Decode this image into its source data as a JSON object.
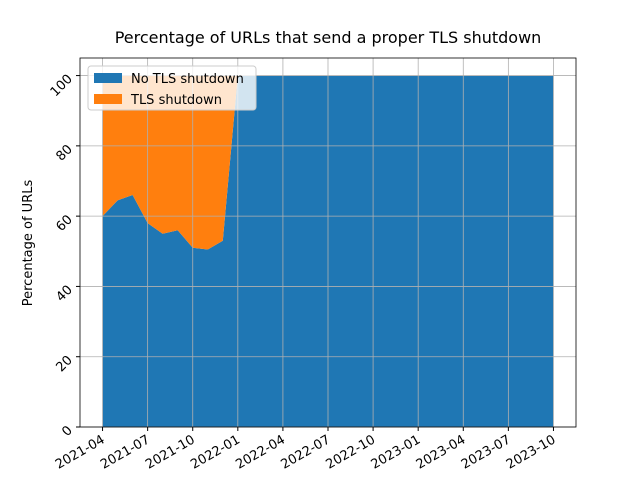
{
  "chart_data": {
    "type": "stacked-area",
    "title": "Percentage of URLs that send a proper TLS shutdown",
    "y_label": "Percentage of URLs",
    "x": [
      "2021-04",
      "2021-05",
      "2021-06",
      "2021-07",
      "2021-08",
      "2021-09",
      "2021-10",
      "2021-11",
      "2021-12",
      "2022-01",
      "2022-02",
      "2022-03",
      "2022-04",
      "2022-05",
      "2022-06",
      "2022-07",
      "2022-08",
      "2022-09",
      "2022-10",
      "2022-11",
      "2022-12",
      "2023-01",
      "2023-02",
      "2023-03",
      "2023-04",
      "2023-05",
      "2023-06",
      "2023-07",
      "2023-08",
      "2023-09",
      "2023-10"
    ],
    "series": [
      {
        "name": "No TLS shutdown",
        "color": "#1f77b4",
        "values": [
          60,
          64.5,
          66,
          58,
          55,
          56,
          51,
          50.5,
          53,
          100,
          100,
          100,
          100,
          100,
          100,
          100,
          100,
          100,
          100,
          100,
          100,
          100,
          100,
          100,
          100,
          100,
          100,
          100,
          100,
          100,
          100
        ]
      },
      {
        "name": "TLS shutdown",
        "color": "#ff7f0e",
        "values": [
          40,
          35.5,
          34,
          42,
          45,
          44,
          49,
          49.5,
          47,
          0,
          0,
          0,
          0,
          0,
          0,
          0,
          0,
          0,
          0,
          0,
          0,
          0,
          0,
          0,
          0,
          0,
          0,
          0,
          0,
          0,
          0
        ]
      }
    ],
    "xticks": [
      "2021-04",
      "2021-07",
      "2021-10",
      "2022-01",
      "2022-04",
      "2022-07",
      "2022-10",
      "2023-01",
      "2023-04",
      "2023-07",
      "2023-10"
    ],
    "ylim": [
      0,
      105
    ],
    "yticks": [
      0,
      20,
      40,
      60,
      80,
      100
    ],
    "grid": true,
    "legend": "upper-left"
  }
}
